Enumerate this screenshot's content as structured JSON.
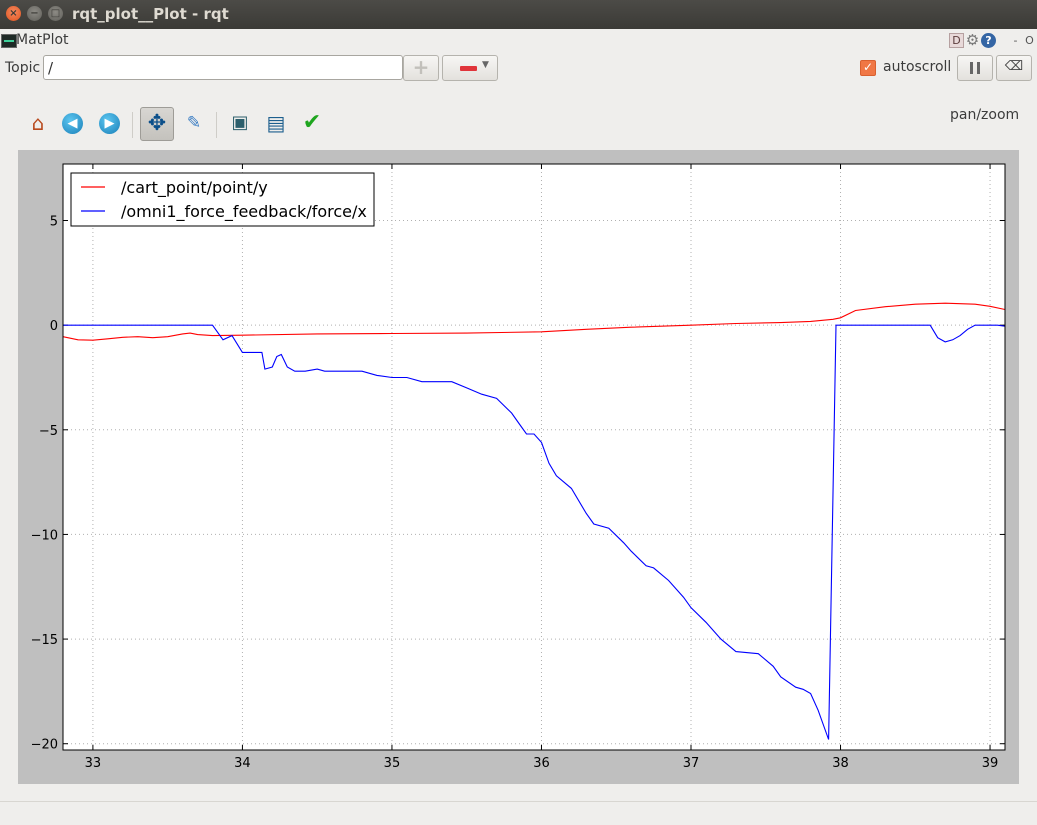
{
  "window": {
    "title": "rqt_plot__Plot - rqt"
  },
  "plugin": {
    "title": "MatPlot",
    "help_icons": [
      "D",
      "⚙",
      "?",
      "-",
      "O"
    ]
  },
  "topic": {
    "label": "Topic",
    "value": "/"
  },
  "autoscroll": {
    "label": "autoscroll",
    "checked": true
  },
  "toolbar": {
    "mode_label": "pan/zoom",
    "buttons": [
      "home-icon",
      "back-icon",
      "forward-icon",
      "pan-icon",
      "zoom-icon",
      "subplots-icon",
      "save-icon",
      "edit-curves-icon"
    ]
  },
  "chart_data": {
    "type": "line",
    "title": "",
    "xlabel": "",
    "ylabel": "",
    "xlim": [
      32.8,
      39.1
    ],
    "ylim": [
      -20.3,
      7.7
    ],
    "xticks": [
      33,
      34,
      35,
      36,
      37,
      38,
      39
    ],
    "yticks": [
      5,
      0,
      -5,
      -10,
      -15,
      -20
    ],
    "ytick_labels": [
      "5",
      "0",
      "−5",
      "−10",
      "−15",
      "−20"
    ],
    "grid": true,
    "legend_position": "upper-left",
    "series": [
      {
        "name": "/cart_point/point/y",
        "color": "#ff0000",
        "x": [
          32.8,
          32.9,
          33.0,
          33.1,
          33.2,
          33.3,
          33.4,
          33.5,
          33.6,
          33.65,
          33.7,
          33.8,
          34.0,
          34.5,
          35.0,
          35.5,
          36.0,
          36.3,
          36.6,
          37.0,
          37.3,
          37.6,
          37.8,
          37.95,
          38.0,
          38.1,
          38.3,
          38.5,
          38.7,
          38.9,
          39.0,
          39.1
        ],
        "y": [
          -0.55,
          -0.7,
          -0.72,
          -0.65,
          -0.58,
          -0.55,
          -0.6,
          -0.55,
          -0.42,
          -0.38,
          -0.45,
          -0.5,
          -0.48,
          -0.42,
          -0.4,
          -0.38,
          -0.32,
          -0.2,
          -0.1,
          0.0,
          0.08,
          0.12,
          0.18,
          0.28,
          0.35,
          0.7,
          0.88,
          1.0,
          1.05,
          1.0,
          0.9,
          0.75
        ]
      },
      {
        "name": "/omni1_force_feedback/force/x",
        "color": "#0000ff",
        "x": [
          32.8,
          33.8,
          33.87,
          33.93,
          34.0,
          34.13,
          34.15,
          34.2,
          34.23,
          34.26,
          34.3,
          34.35,
          34.42,
          34.5,
          34.55,
          34.6,
          34.8,
          34.9,
          35.0,
          35.1,
          35.2,
          35.4,
          35.5,
          35.6,
          35.7,
          35.8,
          35.85,
          35.9,
          35.95,
          36.0,
          36.05,
          36.1,
          36.2,
          36.3,
          36.35,
          36.45,
          36.55,
          36.6,
          36.7,
          36.75,
          36.85,
          36.95,
          37.0,
          37.1,
          37.2,
          37.3,
          37.45,
          37.55,
          37.6,
          37.7,
          37.75,
          37.8,
          37.85,
          37.92,
          37.97,
          38.0,
          38.6,
          38.65,
          38.7,
          38.75,
          38.8,
          38.85,
          38.9,
          38.95,
          39.0,
          39.05,
          39.1
        ],
        "y": [
          0.0,
          0.0,
          -0.7,
          -0.5,
          -1.3,
          -1.3,
          -2.1,
          -2.0,
          -1.5,
          -1.4,
          -2.0,
          -2.2,
          -2.2,
          -2.1,
          -2.2,
          -2.2,
          -2.2,
          -2.4,
          -2.5,
          -2.5,
          -2.7,
          -2.7,
          -3.0,
          -3.3,
          -3.5,
          -4.2,
          -4.7,
          -5.2,
          -5.2,
          -5.6,
          -6.6,
          -7.2,
          -7.8,
          -9.0,
          -9.5,
          -9.7,
          -10.4,
          -10.8,
          -11.5,
          -11.6,
          -12.2,
          -13.0,
          -13.5,
          -14.2,
          -15.0,
          -15.6,
          -15.7,
          -16.3,
          -16.8,
          -17.3,
          -17.4,
          -17.6,
          -18.4,
          -19.8,
          -0.0,
          0.0,
          0.0,
          -0.6,
          -0.8,
          -0.7,
          -0.5,
          -0.2,
          0.0,
          0.0,
          0.0,
          0.0,
          -0.05
        ]
      }
    ]
  }
}
